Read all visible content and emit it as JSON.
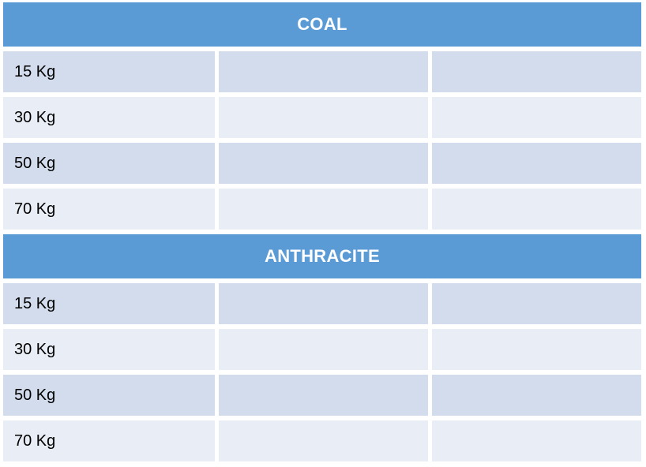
{
  "table": {
    "sections": [
      {
        "header": "COAL",
        "rows": [
          {
            "label": "15 Kg",
            "values": [
              "",
              ""
            ]
          },
          {
            "label": "30 Kg",
            "values": [
              "",
              ""
            ]
          },
          {
            "label": "50 Kg",
            "values": [
              "",
              ""
            ]
          },
          {
            "label": "70 Kg",
            "values": [
              "",
              ""
            ]
          }
        ]
      },
      {
        "header": "ANTHRACITE",
        "rows": [
          {
            "label": "15 Kg",
            "values": [
              "",
              ""
            ]
          },
          {
            "label": "30 Kg",
            "values": [
              "",
              ""
            ]
          },
          {
            "label": "50 Kg",
            "values": [
              "",
              ""
            ]
          },
          {
            "label": "70 Kg",
            "values": [
              "",
              ""
            ]
          }
        ]
      }
    ]
  },
  "colors": {
    "page-bg": "#FFFFFF",
    "header-bg": "#5B9BD5",
    "header-text": "#FFFFFF",
    "band-dark": "#D2DCEC",
    "band-light": "#E9EDF6",
    "label-text": "#000000"
  }
}
